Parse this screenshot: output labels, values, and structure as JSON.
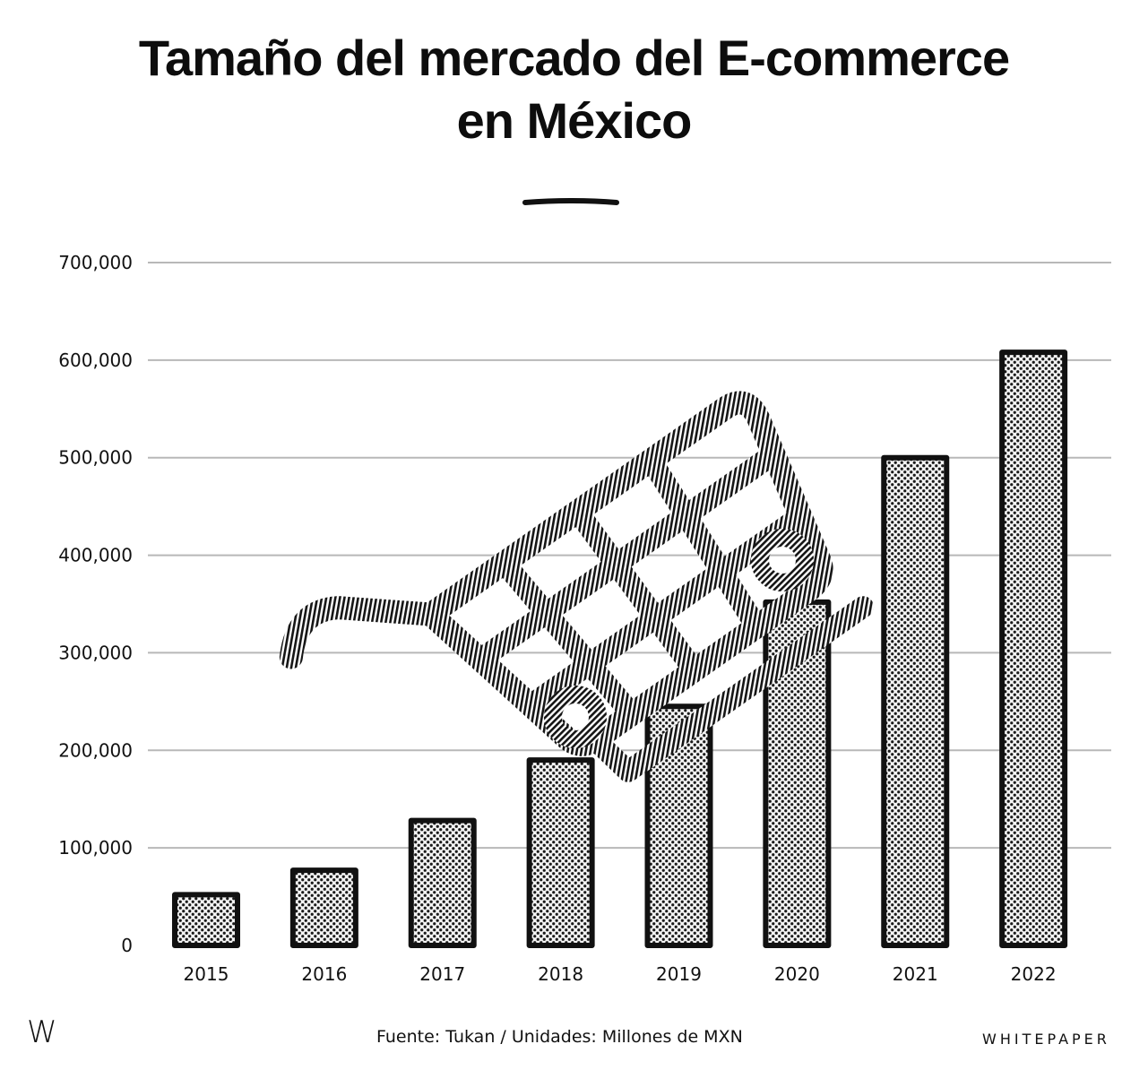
{
  "title_lines": [
    "Tamaño del mercado del E-commerce",
    "en México"
  ],
  "footer": {
    "logo": "W",
    "source": "Fuente: Tukan / Unidades: Millones de MXN",
    "brand": "WHITEPAPER"
  },
  "chart_data": {
    "type": "bar",
    "title": "Tamaño del mercado del E-commerce en México",
    "categories": [
      "2015",
      "2016",
      "2017",
      "2018",
      "2019",
      "2020",
      "2021",
      "2022"
    ],
    "values": [
      52000,
      77000,
      128000,
      190000,
      245000,
      352000,
      500000,
      608000
    ],
    "ylim": [
      0,
      700000
    ],
    "yticks": [
      "0",
      "100,000",
      "200,000",
      "300,000",
      "400,000",
      "500,000",
      "600,000",
      "700,000"
    ],
    "grid": true,
    "colors": {
      "bar_stroke": "#111111",
      "grid": "#b8b8b8",
      "ink": "#111111"
    },
    "icon": "shopping-cart-icon"
  }
}
